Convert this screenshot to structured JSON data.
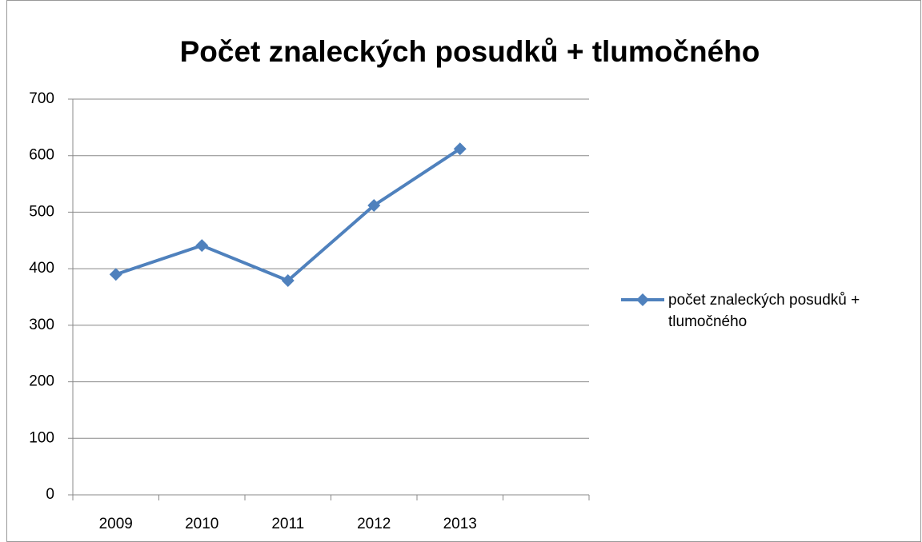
{
  "chart_data": {
    "type": "line",
    "title": "Počet znaleckých posudků + tlumočného",
    "categories": [
      "2009",
      "2010",
      "2011",
      "2012",
      "2013",
      null
    ],
    "series": [
      {
        "name": "počet znaleckých posudků + tlumočného",
        "color": "#4f81bd",
        "values": [
          390,
          441,
          379,
          512,
          612,
          null
        ]
      }
    ],
    "ylim": [
      0,
      700
    ],
    "yticks": [
      0,
      100,
      200,
      300,
      400,
      500,
      600,
      700
    ],
    "grid": true,
    "legend": "right"
  }
}
